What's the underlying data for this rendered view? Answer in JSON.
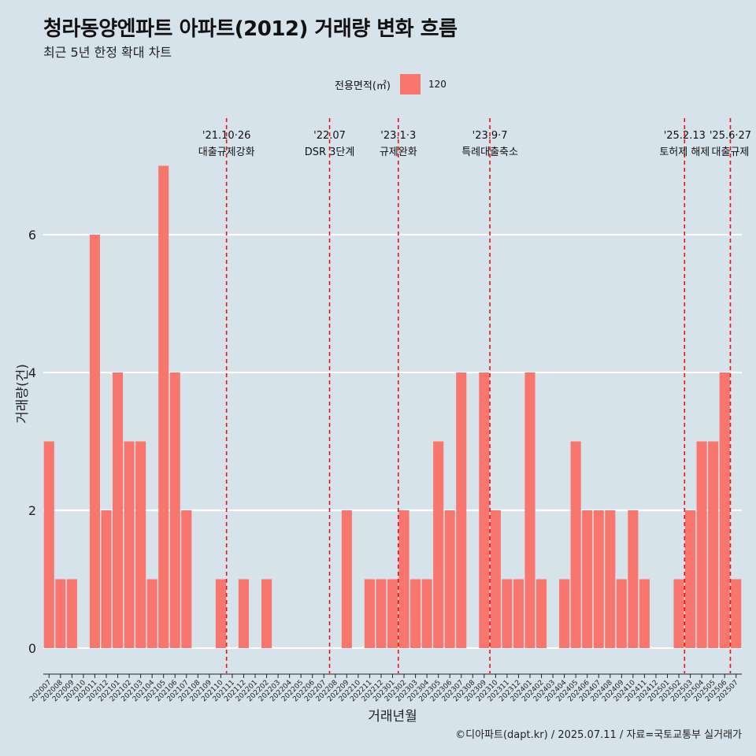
{
  "title": "청라동양엔파트 아파트(2012) 거래량 변화 흐름",
  "subtitle": "최근 5년 한정 확대 차트",
  "caption": "©디아파트(dapt.kr) / 2025.07.11 / 자료=국토교통부 실거래가",
  "legend": {
    "title": "전용면적(㎡)",
    "items": [
      {
        "label": "120",
        "color": "#f8766d"
      }
    ]
  },
  "chart_data": {
    "type": "bar",
    "xlabel": "거래년월",
    "ylabel": "거래량(건)",
    "ylim": [
      0,
      7
    ],
    "y_ticks": [
      0,
      2,
      4,
      6
    ],
    "bar_color": "#f8766d",
    "categories": [
      "202007",
      "202008",
      "202009",
      "202010",
      "202011",
      "202012",
      "202101",
      "202102",
      "202103",
      "202104",
      "202105",
      "202106",
      "202107",
      "202108",
      "202109",
      "202110",
      "202111",
      "202112",
      "202201",
      "202202",
      "202203",
      "202204",
      "202205",
      "202206",
      "202207",
      "202208",
      "202209",
      "202210",
      "202211",
      "202212",
      "202301",
      "202302",
      "202303",
      "202304",
      "202305",
      "202306",
      "202307",
      "202308",
      "202309",
      "202310",
      "202311",
      "202312",
      "202401",
      "202402",
      "202403",
      "202404",
      "202405",
      "202406",
      "202407",
      "202408",
      "202409",
      "202410",
      "202411",
      "202412",
      "202501",
      "202502",
      "202503",
      "202504",
      "202505",
      "202506",
      "202507"
    ],
    "tick_labels": [
      "202007",
      "202008",
      "202009",
      "202010",
      "202011",
      "202012",
      "202101",
      "202102",
      "202103",
      "202104",
      "202105",
      "202106",
      "202107",
      "202108",
      "202109",
      "202110",
      "202111",
      "202112",
      "202201",
      "202202",
      "202203",
      "202204",
      "202205",
      "202206",
      "202207",
      "202208",
      "202209",
      "202210",
      "202211",
      "202212",
      "202301",
      "202302",
      "202303",
      "202304",
      "202305",
      "202306",
      "202307",
      "202308",
      "202309",
      "202310",
      "202311",
      "202312",
      "202401",
      "202402",
      "202403",
      "202404",
      "202405",
      "202406",
      "202407",
      "202408",
      "202409",
      "202410",
      "202411",
      "202412",
      "202501",
      "202502",
      "202503",
      "202504",
      "202505",
      "202506",
      "202507"
    ],
    "values": [
      3,
      1,
      1,
      0,
      6,
      2,
      4,
      3,
      3,
      1,
      7,
      4,
      2,
      0,
      0,
      1,
      0,
      1,
      0,
      1,
      0,
      0,
      0,
      0,
      0,
      0,
      2,
      0,
      1,
      1,
      1,
      2,
      1,
      1,
      3,
      2,
      4,
      0,
      4,
      2,
      1,
      1,
      4,
      1,
      0,
      1,
      3,
      2,
      2,
      2,
      1,
      2,
      1,
      0,
      0,
      1,
      2,
      3,
      3,
      4,
      1
    ],
    "annotations": [
      {
        "date": "'21.10·26",
        "label": "대출규제강화",
        "position": 15.5
      },
      {
        "date": "'22.07",
        "label": "DSR 3단계",
        "position": 24.5
      },
      {
        "date": "'23.1·3",
        "label": "규제완화",
        "position": 30.5
      },
      {
        "date": "'23.9·7",
        "label": "특례대출축소",
        "position": 38.5
      },
      {
        "date": "'25.2.13",
        "label": "토허제 해제",
        "position": 55.5
      },
      {
        "date": "'25.6·27",
        "label": "대출규제",
        "position": 59.5
      }
    ]
  }
}
